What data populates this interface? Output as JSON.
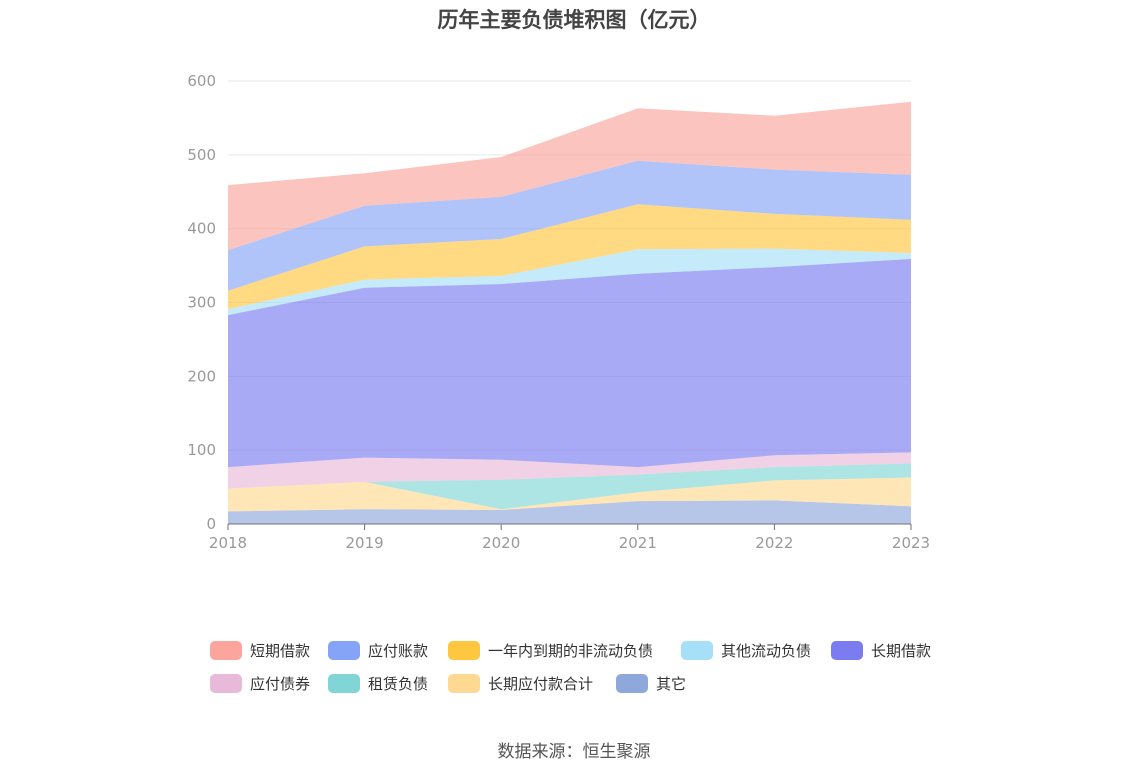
{
  "page": {
    "title": "历年主要负债堆积图（亿元）",
    "source_note": "数据来源：恒生聚源"
  },
  "chart_data": {
    "type": "area",
    "stacked": true,
    "title": "历年主要负债堆积图（亿元）",
    "xlabel": "",
    "ylabel": "",
    "categories": [
      "2018",
      "2019",
      "2020",
      "2021",
      "2022",
      "2023"
    ],
    "ylim": [
      0,
      600
    ],
    "yticks": [
      0,
      100,
      200,
      300,
      400,
      500,
      600
    ],
    "grid": true,
    "legend_position": "bottom",
    "series": [
      {
        "name": "其它",
        "color": "#8fa8dc",
        "values": [
          17,
          20,
          19,
          31,
          32,
          24
        ]
      },
      {
        "name": "长期应付款合计",
        "color": "#ffd891",
        "values": [
          31,
          37,
          1,
          12,
          27,
          39
        ]
      },
      {
        "name": "租赁负债",
        "color": "#81d5d6",
        "values": [
          0,
          0,
          40,
          24,
          18,
          19
        ]
      },
      {
        "name": "应付债券",
        "color": "#e9b9d9",
        "values": [
          29,
          33,
          27,
          10,
          16,
          15
        ]
      },
      {
        "name": "长期借款",
        "color": "#7b7cf0",
        "values": [
          206,
          230,
          238,
          262,
          255,
          262
        ]
      },
      {
        "name": "其他流动负债",
        "color": "#a6e0f8",
        "values": [
          8,
          11,
          11,
          33,
          25,
          8
        ]
      },
      {
        "name": "一年内到期的非流动负债",
        "color": "#ffc63f",
        "values": [
          25,
          45,
          50,
          61,
          47,
          45
        ]
      },
      {
        "name": "应付账款",
        "color": "#85a4f8",
        "values": [
          55,
          55,
          57,
          59,
          60,
          61
        ]
      },
      {
        "name": "短期借款",
        "color": "#fba59d",
        "values": [
          88,
          44,
          54,
          71,
          73,
          99
        ]
      }
    ]
  },
  "legend": {
    "items": [
      {
        "label": "短期借款",
        "color": "#fba59d"
      },
      {
        "label": "应付账款",
        "color": "#85a4f8"
      },
      {
        "label": "一年内到期的非流动负债",
        "color": "#ffc63f"
      },
      {
        "label": "其他流动负债",
        "color": "#a6e0f8"
      },
      {
        "label": "长期借款",
        "color": "#7b7cf0"
      },
      {
        "label": "应付债券",
        "color": "#e9b9d9"
      },
      {
        "label": "租赁负债",
        "color": "#81d5d6"
      },
      {
        "label": "长期应付款合计",
        "color": "#ffd891"
      },
      {
        "label": "其它",
        "color": "#8fa8dc"
      }
    ]
  }
}
